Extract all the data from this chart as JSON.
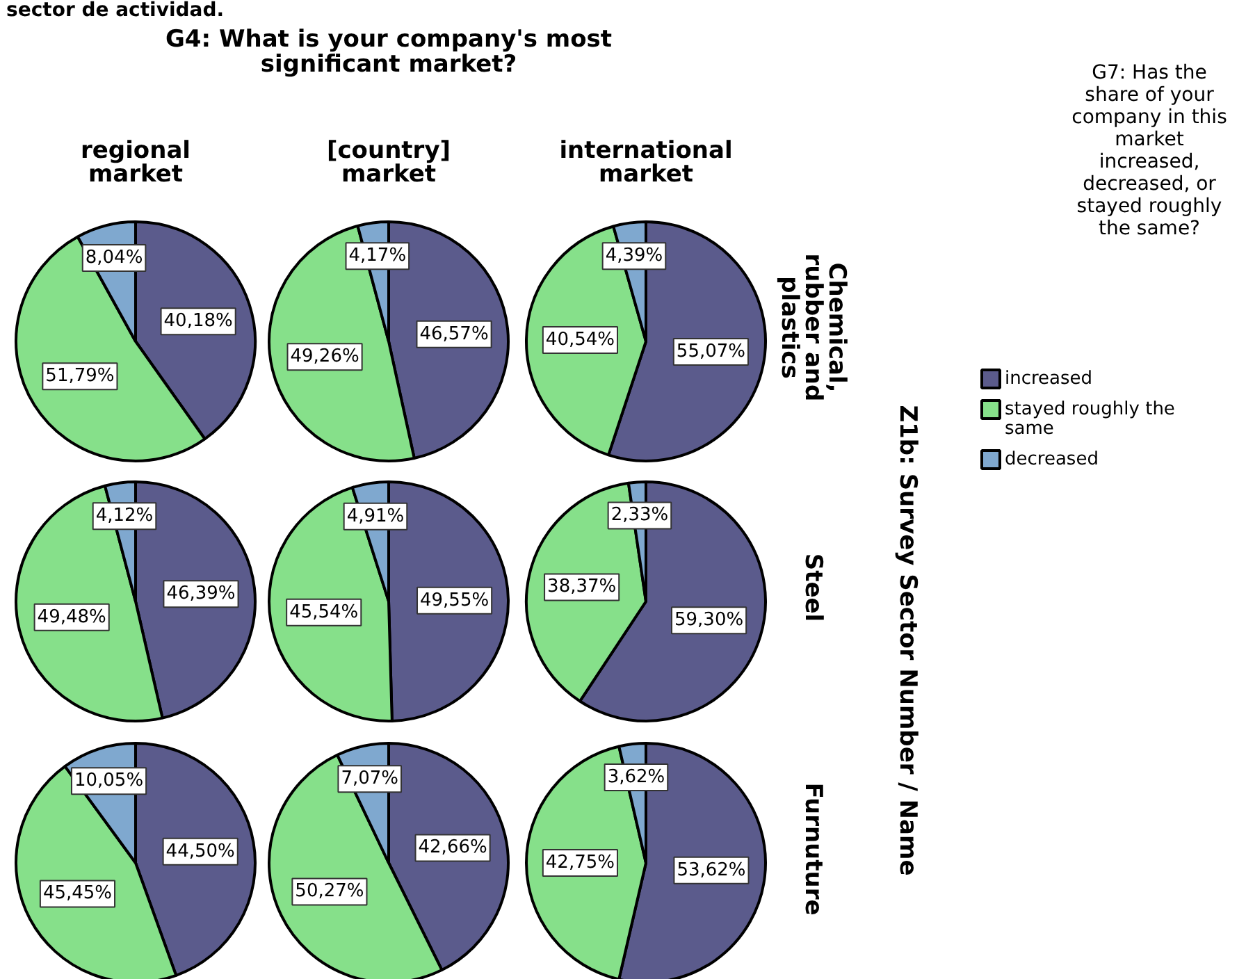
{
  "chart_data": [
    {
      "type": "pie",
      "title": "G4: What is your company's most significant market?",
      "subtitle": "regional market",
      "legend": "right",
      "legend_title": "G7: Has the share of your company in this market increased, decreased, or stayed roughly the same?",
      "annotations": [
        "sector de actividad.",
        "Z1b: Survey Sector Number / Name"
      ],
      "categories": [
        "increased",
        "stayed roughly the same",
        "decreased"
      ],
      "colors": [
        "#5b5b8c",
        "#86e08a",
        "#7fa8cf"
      ],
      "values": [
        40.18,
        51.79,
        8.04
      ],
      "value_labels": [
        "40,18%",
        "51,79%",
        "8,04%"
      ]
    },
    {
      "type": "pie",
      "subtitle": "[country] market",
      "colors": [
        "#5b5b8c",
        "#86e08a",
        "#7fa8cf"
      ],
      "values": [
        46.57,
        49.26,
        4.17
      ],
      "value_labels": [
        "46,57%",
        "49,26%",
        "4,17%"
      ]
    },
    {
      "type": "pie",
      "subtitle": "international market",
      "ylabel": "Chemical, rubber and plastics",
      "colors": [
        "#5b5b8c",
        "#86e08a",
        "#7fa8cf"
      ],
      "values": [
        55.07,
        40.54,
        4.39
      ],
      "value_labels": [
        "55,07%",
        "40,54%",
        "4,39%"
      ]
    },
    {
      "type": "pie",
      "colors": [
        "#5b5b8c",
        "#86e08a",
        "#7fa8cf"
      ],
      "values": [
        46.39,
        49.48,
        4.12
      ],
      "value_labels": [
        "46,39%",
        "49,48%",
        "4,12%"
      ]
    },
    {
      "type": "pie",
      "colors": [
        "#5b5b8c",
        "#86e08a",
        "#7fa8cf"
      ],
      "values": [
        49.55,
        45.54,
        4.91
      ],
      "value_labels": [
        "49,55%",
        "45,54%",
        "4,91%"
      ]
    },
    {
      "type": "pie",
      "ylabel": "Steel",
      "colors": [
        "#5b5b8c",
        "#86e08a",
        "#7fa8cf"
      ],
      "values": [
        59.3,
        38.37,
        2.33
      ],
      "value_labels": [
        "59,30%",
        "38,37%",
        "2,33%"
      ]
    },
    {
      "type": "pie",
      "colors": [
        "#5b5b8c",
        "#86e08a",
        "#7fa8cf"
      ],
      "values": [
        44.5,
        45.45,
        10.05
      ],
      "value_labels": [
        "44,50%",
        "45,45%",
        "10,05%"
      ]
    },
    {
      "type": "pie",
      "colors": [
        "#5b5b8c",
        "#86e08a",
        "#7fa8cf"
      ],
      "values": [
        42.66,
        50.27,
        7.07
      ],
      "value_labels": [
        "42,66%",
        "50,27%",
        "7,07%"
      ]
    },
    {
      "type": "pie",
      "ylabel": "Furnuture",
      "colors": [
        "#5b5b8c",
        "#86e08a",
        "#7fa8cf"
      ],
      "values": [
        53.62,
        42.75,
        3.62
      ],
      "value_labels": [
        "53,62%",
        "42,75%",
        "3,62%"
      ]
    }
  ]
}
